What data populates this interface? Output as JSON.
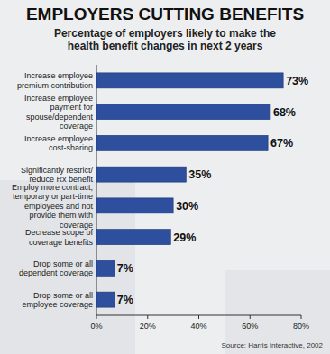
{
  "chart_data": {
    "type": "bar",
    "orientation": "horizontal",
    "title": "EMPLOYERS CUTTING BENEFITS",
    "subtitle": "Percentage of employers likely to make the health benefit changes in next 2 years",
    "categories": [
      "Increase employee premium contribution",
      "Increase employee payment for spouse/dependent coverage",
      "Increase employee cost-sharing",
      "Significantly restrict/ reduce Rx benefit",
      "Employ more contract, temporary or part-time employees and not provide them with coverage",
      "Decrease scope of coverage benefits",
      "Drop some or all dependent coverage",
      "Drop some or all employee coverage"
    ],
    "values": [
      73,
      68,
      67,
      35,
      30,
      29,
      7,
      7
    ],
    "value_labels": [
      "73%",
      "68%",
      "67%",
      "35%",
      "30%",
      "29%",
      "7%",
      "7%"
    ],
    "data_labels": true,
    "color": "#2d4f9e",
    "xlim": [
      0,
      80
    ],
    "xticks": [
      {
        "value": 0,
        "label": "0%"
      },
      {
        "value": 20,
        "label": "20%"
      },
      {
        "value": 40,
        "label": "40%"
      },
      {
        "value": 60,
        "label": "60%"
      },
      {
        "value": 80,
        "label": "80%"
      }
    ],
    "source": "Source: Harris Interactive, 2002"
  }
}
